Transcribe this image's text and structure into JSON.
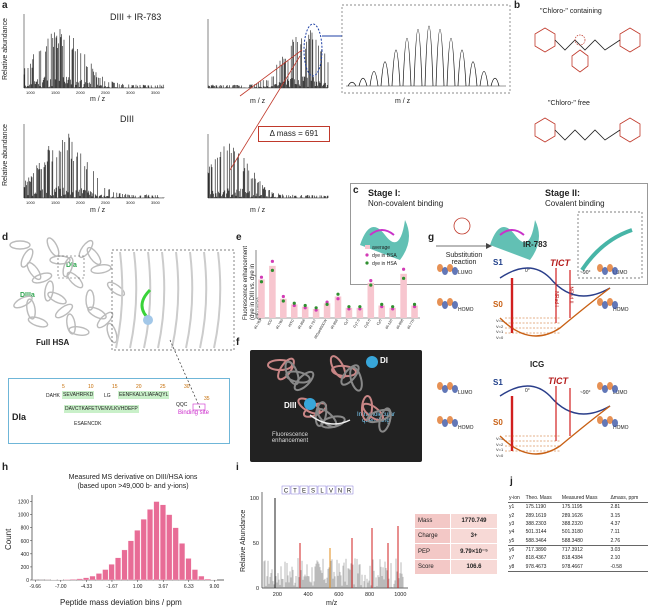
{
  "panels": {
    "a": "a",
    "b": "b",
    "c": "c",
    "d": "d",
    "e": "e",
    "f": "f",
    "g": "g",
    "h": "h",
    "i": "i",
    "j": "j"
  },
  "panel_a": {
    "top_title": "DIII + IR-783",
    "bottom_title": "DIII",
    "ylabel": "Relative abundance",
    "xlabel": "m / z",
    "delta_mass": "Δ mass = 691",
    "xticks": [
      "1000",
      "1500",
      "2000",
      "2500",
      "3000",
      "3500"
    ]
  },
  "panel_b": {
    "top": "\"Chloro-\" containing",
    "bottom": "\"Chloro-\" free"
  },
  "panel_c": {
    "stage1_title": "Stage I:",
    "stage1_sub": "Non-covalent binding",
    "stage2_title": "Stage II:",
    "stage2_sub": "Covalent binding",
    "reaction": "Substitution reaction"
  },
  "panel_d": {
    "dia": "DIa",
    "diiia": "DIIIa",
    "full": "Full HSA",
    "seq_label": "DIa",
    "binding_site": "Binding site",
    "seq1": "SEVAHRFKD",
    "seq2": "LG",
    "seq3": "EENFKALVLIAFAQYL",
    "seq4": "DAVCTKAFETVENVLKVHDEFP",
    "seq5": "ESAENCDK",
    "seq_prefix": "DAHK",
    "seq_end": "QQC",
    "nums": [
      "5",
      "10",
      "15",
      "20",
      "25",
      "30",
      "35"
    ]
  },
  "panel_e": {
    "ylabel": "Fluorescence enhancement (dye in DIII vs. dye in albumin)",
    "legend": [
      "average",
      "dye in BSA",
      "dye in HSA"
    ],
    "categories": [
      "IR-783",
      "ICG",
      "IR-780",
      "HITC",
      "IR-806",
      "IR-797",
      "IRDye800CW",
      "IR-806",
      "Cy7",
      "Cy7.5",
      "Cy5.5",
      "Cy5",
      "IR-120",
      "IR-808",
      "IR-775"
    ]
  },
  "panel_f": {
    "di": "DI",
    "diii": "DIII",
    "fl": "Fluorescence enhancement",
    "iq": "Intramolecular quenching"
  },
  "panel_g": {
    "top_title": "IR-783",
    "bottom_title": "ICG",
    "lumo": "LUMO",
    "homo": "HOMO",
    "tict": "TICT",
    "s1": "S1",
    "s0": "S0",
    "angle0": "0°",
    "angle90": "~90°",
    "nrad1": "NRad I",
    "nrad2": "NRad II",
    "v_levels": [
      "V=3",
      "V=2",
      "V=1",
      "V=0"
    ]
  },
  "panel_h": {
    "title1": "Measured MS derivative on DIII/HSA ions",
    "title2": "(based upon >49,000 b- and y-ions)",
    "ylabel": "Count",
    "xlabel": "Peptide mass deviation bins / ppm",
    "xticks": [
      "-9.66",
      "-7.00",
      "-4.33",
      "-1.67",
      "1.00",
      "3.67",
      "6.33",
      "9.00"
    ],
    "yticks": [
      "0",
      "200",
      "400",
      "600",
      "800",
      "1000",
      "1200"
    ]
  },
  "panel_i": {
    "ylabel": "Relative Abundance",
    "xlabel": "m/z",
    "sequence": [
      "C",
      "T",
      "E",
      "S",
      "L",
      "V",
      "N",
      "R"
    ],
    "xticks": [
      "200",
      "400",
      "600",
      "800",
      "1000"
    ],
    "yticks": [
      "0",
      "50",
      "100"
    ],
    "table": [
      {
        "k": "Mass",
        "v": "1770.749"
      },
      {
        "k": "Charge",
        "v": "3+"
      },
      {
        "k": "PEP",
        "v": "9.79×10⁻⁵"
      },
      {
        "k": "Score",
        "v": "106.6"
      }
    ]
  },
  "panel_j": {
    "headers": [
      "y-ion",
      "Theo. Mass",
      "Measured Mass",
      "Δmass, ppm"
    ],
    "rows": [
      [
        "y1",
        "175.1190",
        "175.1195",
        "2.81"
      ],
      [
        "y2",
        "289.1619",
        "289.1626",
        "3.15"
      ],
      [
        "y3",
        "388.2303",
        "388.2320",
        "4.37"
      ],
      [
        "y4",
        "501.3144",
        "501.3180",
        "7.11"
      ],
      [
        "y5",
        "588.3464",
        "588.3480",
        "2.76"
      ],
      [
        "y6",
        "717.3890",
        "717.3912",
        "3.03"
      ],
      [
        "y7",
        "818.4367",
        "818.4384",
        "2.10"
      ],
      [
        "y8",
        "978.4673",
        "978.4667",
        "-0.58"
      ]
    ]
  },
  "chart_data": [
    {
      "type": "bar",
      "panel": "h",
      "title": "Measured MS derivative on DIII/HSA ions (based upon >49,000 b- and y-ions)",
      "xlabel": "Peptide mass deviation bins / ppm",
      "ylabel": "Count",
      "ylim": [
        0,
        1300
      ],
      "x": [
        -9.66,
        -9.0,
        -8.33,
        -7.67,
        -7.0,
        -6.33,
        -5.67,
        -5.0,
        -4.33,
        -3.67,
        -3.0,
        -2.33,
        -1.67,
        -1.0,
        -0.33,
        0.33,
        1.0,
        1.67,
        2.33,
        3.0,
        3.67,
        4.33,
        5.0,
        5.67,
        6.33,
        7.0,
        7.67,
        8.33,
        9.0
      ],
      "values": [
        1,
        1,
        2,
        3,
        5,
        8,
        12,
        20,
        35,
        60,
        100,
        160,
        240,
        340,
        460,
        600,
        760,
        930,
        1080,
        1200,
        1150,
        1000,
        800,
        560,
        330,
        160,
        60,
        15,
        4
      ]
    },
    {
      "type": "bar",
      "panel": "e",
      "ylabel": "Fluorescence enhancement (dye in DIII vs. dye in albumin)",
      "categories": [
        "IR-783",
        "ICG",
        "IR-780",
        "HITC",
        "IR-806",
        "IR-797",
        "IRDye800CW",
        "IR-806",
        "Cy7",
        "Cy7.5",
        "Cy5.5",
        "Cy5",
        "IR-120",
        "IR-808",
        "IR-775"
      ],
      "ylim": [
        0,
        6
      ],
      "series": [
        {
          "name": "average",
          "values": [
            3.4,
            4.6,
            1.7,
            1.2,
            1.0,
            0.8,
            1.3,
            1.9,
            0.9,
            0.9,
            3.1,
            1.1,
            0.9,
            3.9,
            1.1
          ]
        },
        {
          "name": "dye in BSA",
          "values": [
            3.6,
            5.0,
            1.9,
            1.1,
            0.9,
            0.7,
            1.4,
            1.7,
            0.8,
            0.8,
            3.3,
            1.0,
            0.8,
            4.3,
            1.0
          ]
        },
        {
          "name": "dye in HSA",
          "values": [
            3.2,
            4.2,
            1.5,
            1.3,
            1.1,
            0.9,
            1.2,
            2.1,
            1.0,
            1.0,
            2.9,
            1.2,
            1.0,
            3.5,
            1.2
          ]
        }
      ]
    }
  ]
}
